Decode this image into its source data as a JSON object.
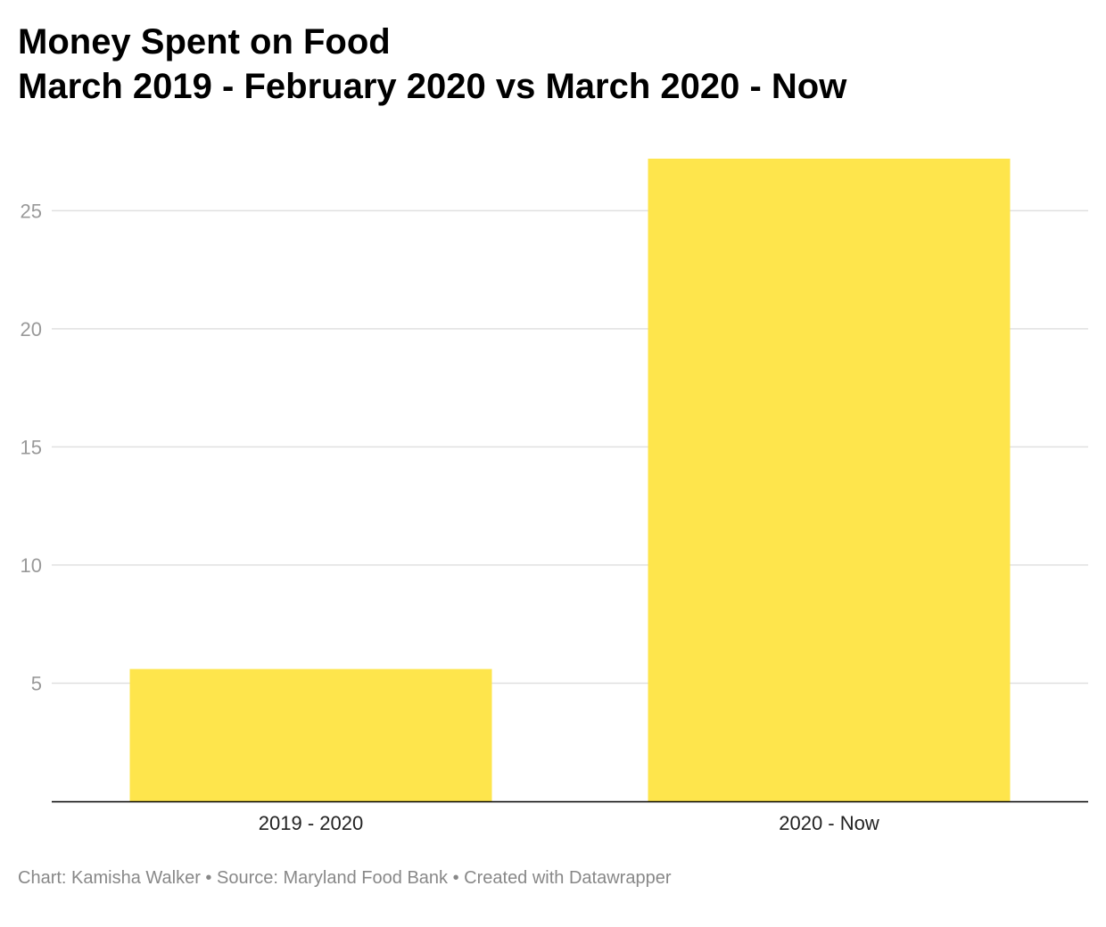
{
  "chart_data": {
    "type": "bar",
    "title_line1": "Money Spent on Food",
    "title_line2": "March 2019 - February 2020 vs March 2020 - Now",
    "categories": [
      "2019 - 2020",
      "2020 - Now"
    ],
    "values": [
      5.6,
      27.2
    ],
    "yticks": [
      5,
      10,
      15,
      20,
      25
    ],
    "ylim": [
      0,
      27.2
    ],
    "grid": true,
    "bar_color": "#fee54c",
    "xlabel": "",
    "ylabel": ""
  },
  "footer": {
    "chart_credit": "Chart: Kamisha Walker",
    "separator1": " • ",
    "source": "Source: Maryland Food Bank",
    "separator2": " • ",
    "created_with": "Created with Datawrapper"
  }
}
